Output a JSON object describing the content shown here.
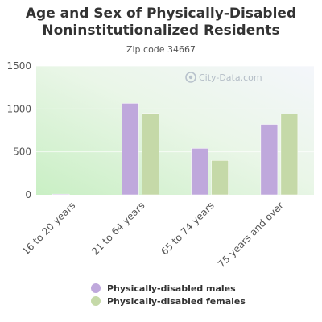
{
  "watermark": "City-Data.com",
  "chart_data": {
    "type": "bar",
    "title": "Age and Sex of Physically-Disabled Noninstitutionalized Residents",
    "subtitle": "Zip code 34667",
    "categories": [
      "16 to 20 years",
      "21 to 64 years",
      "65 to 74 years",
      "75 years and over"
    ],
    "series": [
      {
        "name": "Physically-disabled males",
        "color": "#bfa8dc",
        "values": [
          8,
          1065,
          540,
          820
        ]
      },
      {
        "name": "Physically-disabled females",
        "color": "#c5d9a8",
        "values": [
          0,
          950,
          400,
          940
        ]
      }
    ],
    "ylim": [
      0,
      1500
    ],
    "yticks": [
      0,
      500,
      1000,
      1500
    ],
    "grid": true,
    "legend_position": "bottom"
  }
}
